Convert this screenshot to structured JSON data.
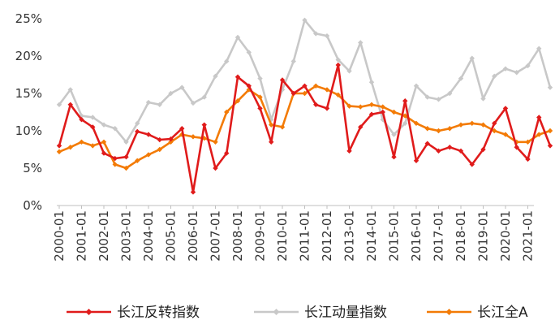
{
  "chart_data": {
    "type": "line",
    "title": "",
    "xlabel": "",
    "ylabel": "",
    "ylim": [
      0,
      25
    ],
    "y_ticks": [
      0,
      5,
      10,
      15,
      20,
      25
    ],
    "y_tick_labels": [
      "0%",
      "5%",
      "10%",
      "15%",
      "20%",
      "25%"
    ],
    "x_tick_labels": [
      "2000-01",
      "2001-01",
      "2002-01",
      "2003-01",
      "2004-01",
      "2005-01",
      "2006-01",
      "2007-01",
      "2008-01",
      "2009-01",
      "2010-01",
      "2011-01",
      "2012-01",
      "2013-01",
      "2014-01",
      "2015-01",
      "2016-01",
      "2017-01",
      "2018-01",
      "2019-01",
      "2020-01",
      "2021-01"
    ],
    "x_start": 2000.0,
    "x_step": 0.5,
    "grid": false,
    "legend_position": "bottom",
    "series": [
      {
        "name": "长江反转指数",
        "color": "#e01b1b",
        "marker": "diamond",
        "values": [
          8.0,
          13.5,
          11.5,
          10.5,
          7.0,
          6.3,
          6.5,
          9.9,
          9.5,
          8.8,
          8.9,
          10.3,
          1.8,
          10.8,
          5.0,
          7.0,
          17.2,
          16.0,
          13.0,
          8.5,
          16.8,
          15.0,
          16.0,
          13.5,
          13.0,
          18.8,
          7.3,
          10.5,
          12.2,
          12.5,
          6.5,
          14.0,
          6.0,
          8.3,
          7.3,
          7.8,
          7.3,
          5.5,
          7.5,
          11.0,
          13.0,
          7.8,
          6.2,
          11.8,
          8.0
        ]
      },
      {
        "name": "长江动量指数",
        "color": "#c8c8c8",
        "marker": "diamond",
        "values": [
          13.5,
          15.5,
          12.0,
          11.8,
          10.8,
          10.3,
          8.5,
          11.0,
          13.8,
          13.5,
          15.0,
          15.8,
          13.7,
          14.5,
          17.3,
          19.3,
          22.5,
          20.5,
          17.0,
          11.5,
          15.5,
          19.3,
          24.8,
          23.0,
          22.7,
          19.5,
          18.0,
          21.8,
          16.5,
          11.5,
          9.5,
          11.0,
          16.0,
          14.5,
          14.2,
          15.0,
          17.0,
          19.7,
          14.3,
          17.3,
          18.3,
          17.8,
          18.7,
          21.0,
          15.8
        ]
      },
      {
        "name": "长江全A",
        "color": "#f37b06",
        "marker": "diamond",
        "values": [
          7.2,
          7.8,
          8.5,
          8.0,
          8.5,
          5.5,
          5.0,
          6.0,
          6.8,
          7.5,
          8.5,
          9.5,
          9.2,
          9.0,
          8.5,
          12.5,
          14.0,
          15.5,
          14.5,
          10.8,
          10.5,
          15.0,
          15.0,
          16.0,
          15.5,
          14.8,
          13.3,
          13.2,
          13.5,
          13.2,
          12.5,
          12.0,
          11.0,
          10.3,
          10.0,
          10.3,
          10.8,
          11.0,
          10.8,
          10.0,
          9.5,
          8.5,
          8.5,
          9.5,
          10.0
        ]
      }
    ]
  }
}
